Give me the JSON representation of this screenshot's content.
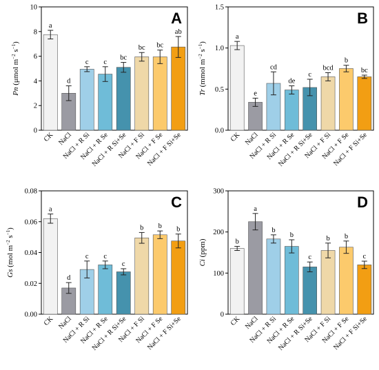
{
  "colors": [
    "#f2f2f2",
    "#9b9ba3",
    "#9fcfe8",
    "#6fbcd8",
    "#4592ad",
    "#efd8a8",
    "#fcca6c",
    "#f29e13"
  ],
  "chart_data": [
    {
      "type": "bar",
      "panel_label": "A",
      "ylabel_italic": "Pn",
      "ylabel_rest": " (μmol m",
      "ylabel_exp1": "−2",
      "ylabel_mid": " s",
      "ylabel_exp2": "−1",
      "ylabel_end": ")",
      "ylim": [
        0,
        10
      ],
      "yticks": [
        "0",
        "2",
        "4",
        "6",
        "8",
        "10"
      ],
      "yticks_values": [
        0,
        2,
        4,
        6,
        8,
        10
      ],
      "categories": [
        "CK",
        "NaCl",
        "NaCl + R Si",
        "NaCl + R Se",
        "NaCl + R Si+Se",
        "NaCl + F Si",
        "NaCl + F Se",
        "NaCl + F Si+Se"
      ],
      "values": [
        7.75,
        3.0,
        4.95,
        4.55,
        5.1,
        5.95,
        5.95,
        6.75
      ],
      "errors": [
        0.35,
        0.6,
        0.2,
        0.6,
        0.4,
        0.35,
        0.55,
        0.85
      ],
      "significance": [
        "a",
        "d",
        "c",
        "c",
        "bc",
        "bc",
        "bc",
        "ab"
      ]
    },
    {
      "type": "bar",
      "panel_label": "B",
      "ylabel_italic": "Tr",
      "ylabel_rest": " (mmol m",
      "ylabel_exp1": "−2",
      "ylabel_mid": " s",
      "ylabel_exp2": "−1",
      "ylabel_end": ")",
      "ylim": [
        0,
        1.5
      ],
      "yticks": [
        "0.0",
        "0.5",
        "1.0",
        "1.5"
      ],
      "yticks_values": [
        0,
        0.5,
        1.0,
        1.5
      ],
      "categories": [
        "CK",
        "NaCl",
        "NaCl + R Si",
        "NaCl + R Se",
        "NaCl + R Si+Se",
        "NaCl + F Si",
        "NaCl + F Se",
        "NaCl + F Si+Se"
      ],
      "values": [
        1.03,
        0.34,
        0.57,
        0.49,
        0.52,
        0.65,
        0.75,
        0.65
      ],
      "errors": [
        0.05,
        0.05,
        0.14,
        0.05,
        0.1,
        0.05,
        0.04,
        0.02
      ],
      "significance": [
        "a",
        "e",
        "cd",
        "de",
        "c",
        "bcd",
        "b",
        "bc"
      ]
    },
    {
      "type": "bar",
      "panel_label": "C",
      "ylabel_italic": "Gs",
      "ylabel_rest": " (mol m",
      "ylabel_exp1": "−2",
      "ylabel_mid": " s",
      "ylabel_exp2": "−1",
      "ylabel_end": ")",
      "ylim": [
        0,
        0.08
      ],
      "yticks": [
        "0.00",
        "0.02",
        "0.04",
        "0.06",
        "0.08"
      ],
      "yticks_values": [
        0,
        0.02,
        0.04,
        0.06,
        0.08
      ],
      "categories": [
        "CK",
        "NaCl",
        "NaCl + R Si",
        "NaCl + R Se",
        "NaCl + R Si+Se",
        "NaCl + F Si",
        "NaCl + F Se",
        "NaCl + F Si+Se"
      ],
      "values": [
        0.062,
        0.017,
        0.029,
        0.032,
        0.0275,
        0.0495,
        0.0515,
        0.0475
      ],
      "errors": [
        0.003,
        0.0035,
        0.0055,
        0.0025,
        0.002,
        0.0035,
        0.0025,
        0.0045
      ],
      "significance": [
        "a",
        "d",
        "c",
        "c",
        "c",
        "b",
        "b",
        "b"
      ]
    },
    {
      "type": "bar",
      "panel_label": "D",
      "ylabel_italic": "Ci",
      "ylabel_rest": " (ppm)",
      "ylabel_exp1": "",
      "ylabel_mid": "",
      "ylabel_exp2": "",
      "ylabel_end": "",
      "ylim": [
        0,
        300
      ],
      "yticks": [
        "0",
        "100",
        "200",
        "300"
      ],
      "yticks_values": [
        0,
        100,
        200,
        300
      ],
      "categories": [
        "CK",
        "NaCl",
        "NaCl + R Si",
        "NaCl + R Se",
        "NaCl + R Si+Se",
        "NaCl + F Si",
        "NaCl + F Se",
        "NaCl + F Si+Se"
      ],
      "values": [
        160,
        225,
        183,
        165,
        115,
        155,
        163,
        120
      ],
      "errors": [
        5,
        20,
        10,
        16,
        12,
        18,
        15,
        9
      ],
      "significance": [
        "b",
        "a",
        "b",
        "b",
        "c",
        "b",
        "b",
        "c"
      ]
    }
  ]
}
